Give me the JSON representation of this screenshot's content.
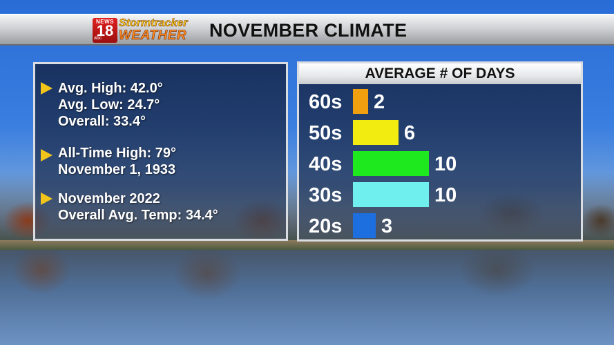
{
  "header": {
    "logo": {
      "news": "NEWS",
      "number": "18",
      "network": "abc",
      "line1": "Stormtracker",
      "line2": "WEATHER"
    },
    "title": "NOVEMBER CLIMATE",
    "bar_color": "#cfd1d4"
  },
  "stats": [
    {
      "lines": [
        "Avg. High: 42.0°",
        "Avg. Low: 24.7°",
        "Overall: 33.4°"
      ]
    },
    {
      "lines": [
        "All-Time High: 79°",
        "November 1, 1933"
      ]
    },
    {
      "lines": [
        "November 2022",
        "Overall Avg. Temp: 34.4°"
      ]
    }
  ],
  "colors": {
    "accent_arrow": "#f2c51a",
    "panel_border": "#d9dde2"
  },
  "chart_data": {
    "type": "bar",
    "orientation": "horizontal",
    "title": "AVERAGE # OF DAYS",
    "categories": [
      "60s",
      "50s",
      "40s",
      "30s",
      "20s"
    ],
    "values": [
      2,
      6,
      10,
      10,
      3
    ],
    "colors": [
      "#f0a00f",
      "#f2ec10",
      "#1ee81e",
      "#6ff0ee",
      "#1d6fe0"
    ],
    "xlim": [
      0,
      10
    ],
    "grid": false,
    "legend": "none"
  }
}
